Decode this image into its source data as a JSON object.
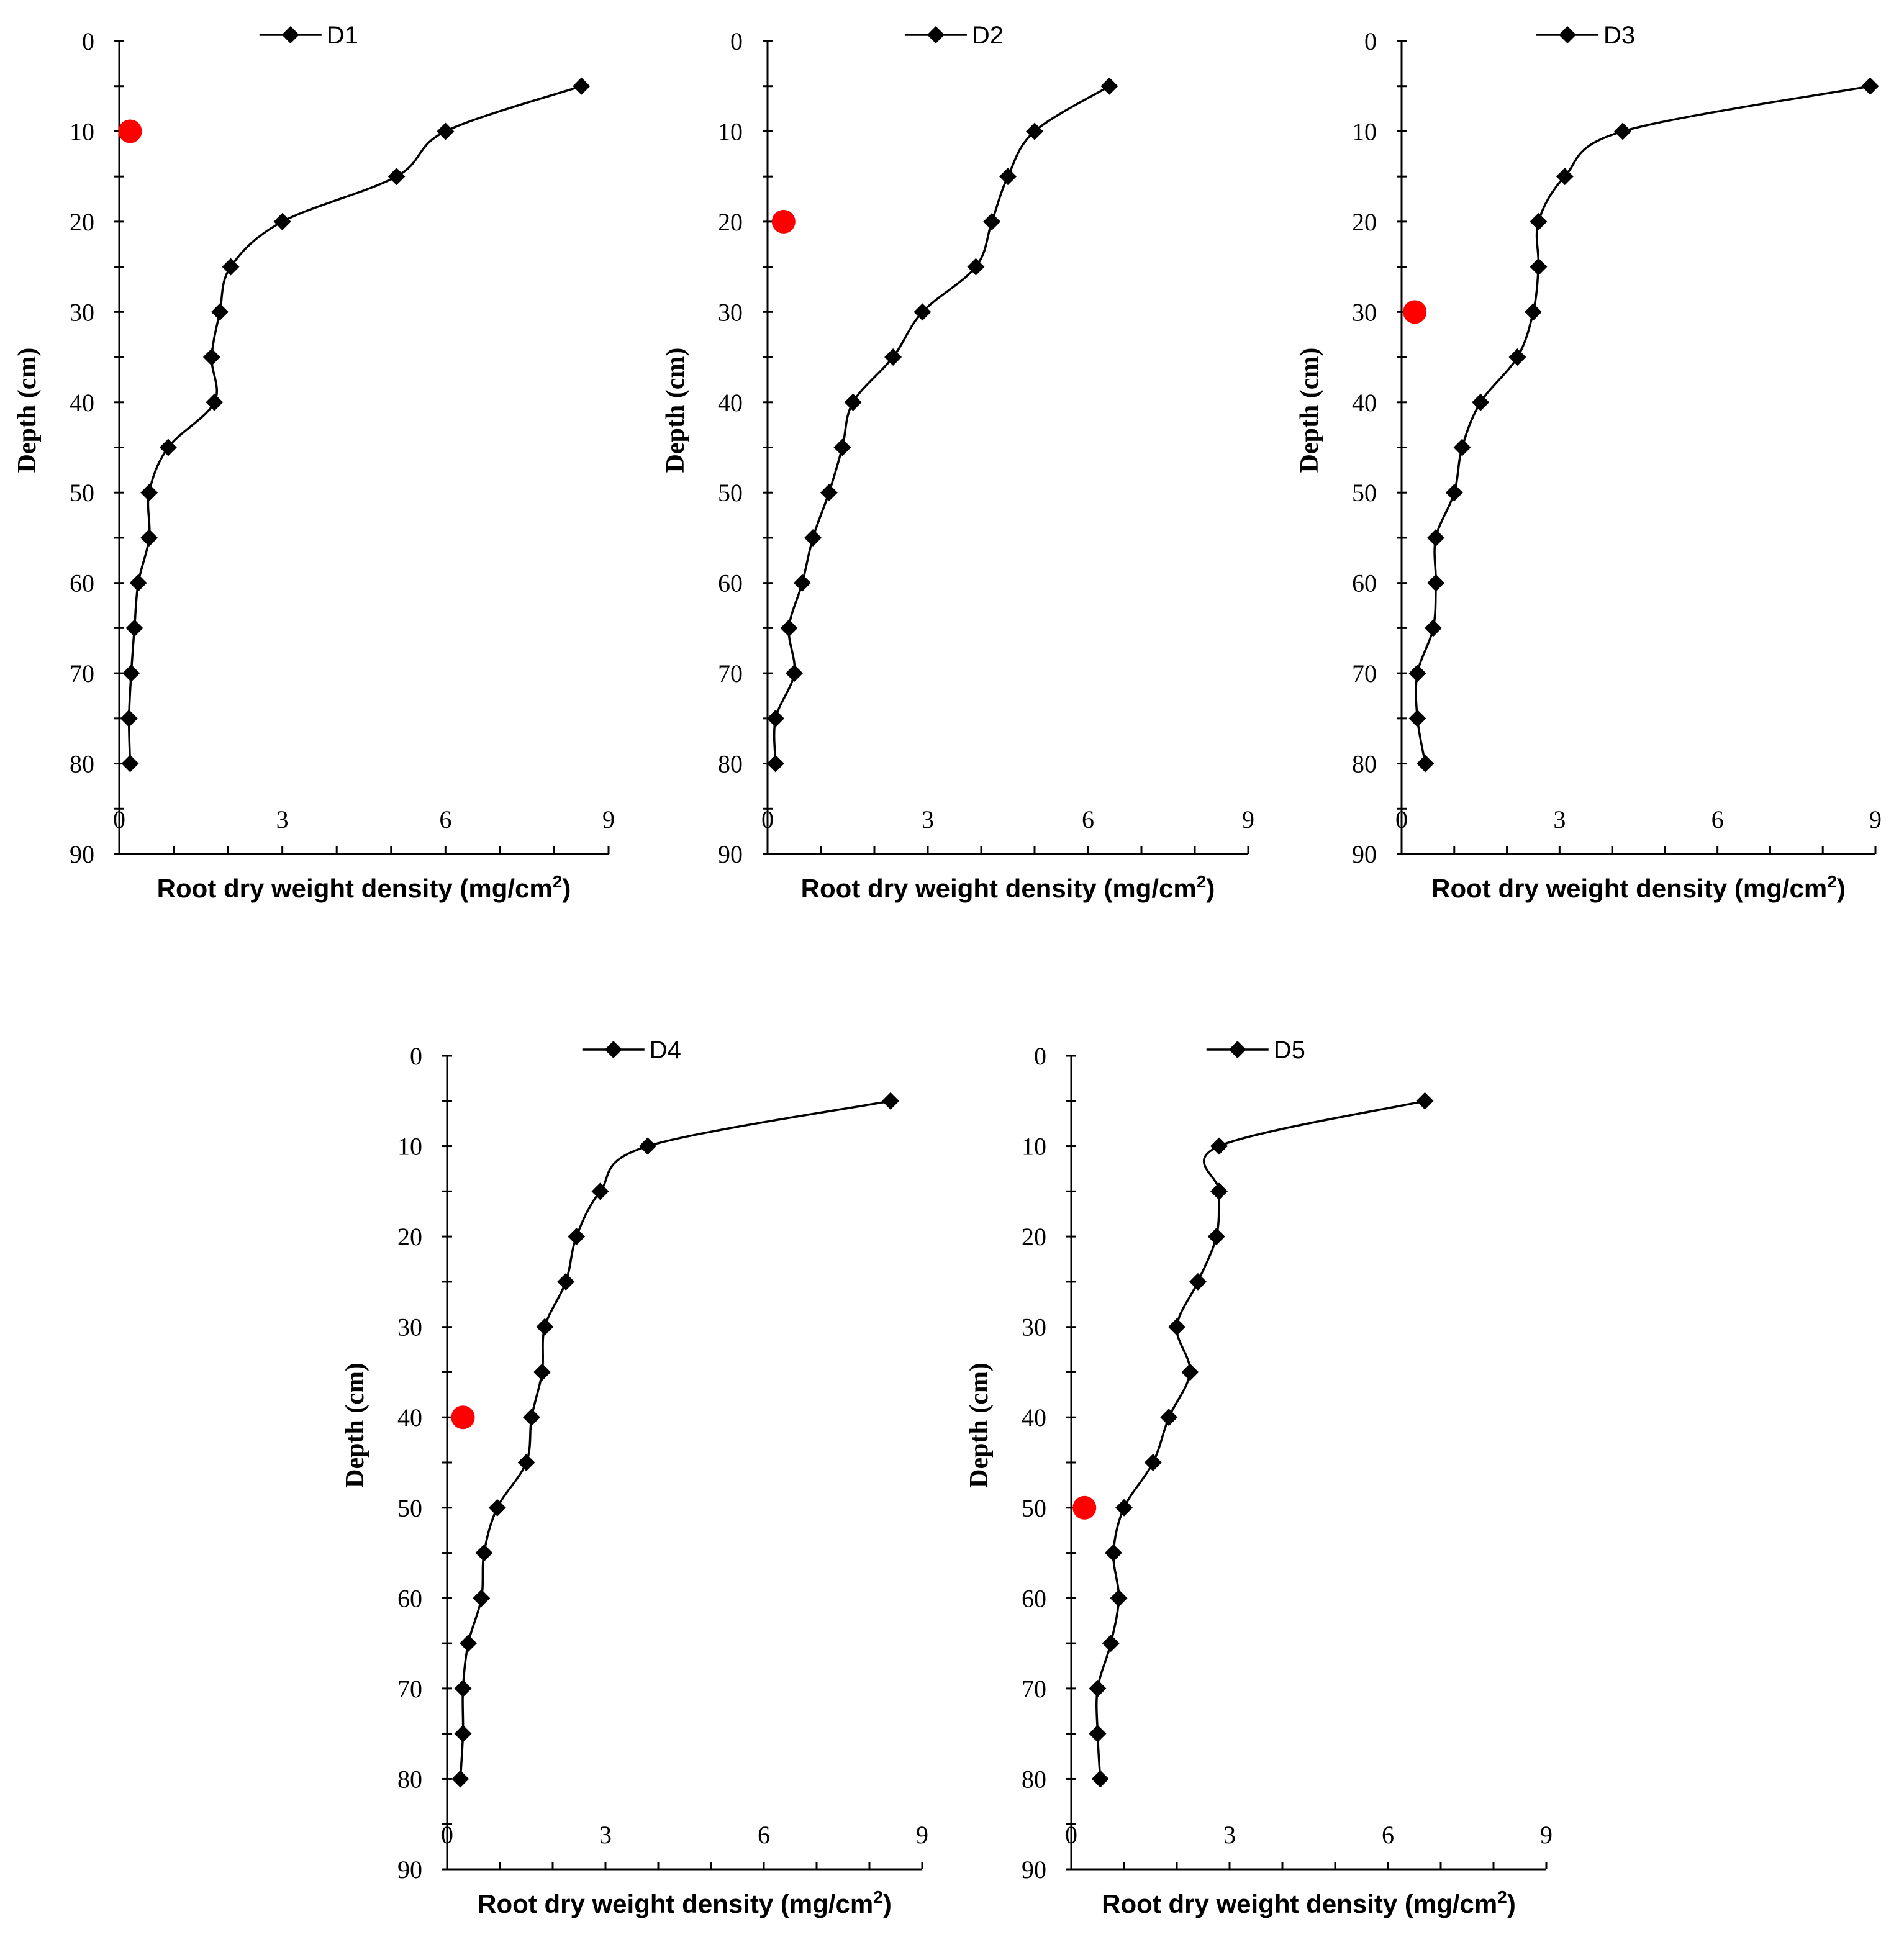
{
  "chart_data": [
    {
      "type": "line",
      "series_name": "D1",
      "xlabel": "Root dry weight density (mg/cm",
      "xlabel_sup": "2",
      "xlabel_close": ")",
      "ylabel": "Depth (cm)",
      "xlim": [
        0,
        9
      ],
      "ylim": [
        0,
        90
      ],
      "x_ticks": [
        "0",
        "3",
        "6",
        "9"
      ],
      "y_ticks": [
        "0",
        "10",
        "20",
        "30",
        "40",
        "50",
        "60",
        "70",
        "80",
        "90"
      ],
      "depth": [
        5,
        10,
        15,
        20,
        25,
        30,
        35,
        40,
        45,
        50,
        55,
        60,
        65,
        70,
        75,
        80
      ],
      "values": [
        8.5,
        6.0,
        5.1,
        3.0,
        2.05,
        1.85,
        1.7,
        1.75,
        0.9,
        0.55,
        0.55,
        0.35,
        0.28,
        0.22,
        0.18,
        0.2
      ],
      "highlight": {
        "x": 0.2,
        "depth": 10
      },
      "highlight_color": "#ff0000"
    },
    {
      "type": "line",
      "series_name": "D2",
      "xlabel": "Root dry weight density (mg/cm",
      "xlabel_sup": "2",
      "xlabel_close": ")",
      "ylabel": "Depth (cm)",
      "xlim": [
        0,
        9
      ],
      "ylim": [
        0,
        90
      ],
      "x_ticks": [
        "0",
        "3",
        "6",
        "9"
      ],
      "y_ticks": [
        "0",
        "10",
        "20",
        "30",
        "40",
        "50",
        "60",
        "70",
        "80",
        "90"
      ],
      "depth": [
        5,
        10,
        15,
        20,
        25,
        30,
        35,
        40,
        45,
        50,
        55,
        60,
        65,
        70,
        75,
        80
      ],
      "values": [
        6.4,
        5.0,
        4.5,
        4.2,
        3.9,
        2.9,
        2.35,
        1.6,
        1.4,
        1.15,
        0.85,
        0.65,
        0.4,
        0.5,
        0.15,
        0.15
      ],
      "highlight": {
        "x": 0.3,
        "depth": 20
      },
      "highlight_color": "#ff0000"
    },
    {
      "type": "line",
      "series_name": "D3",
      "xlabel": "Root dry weight density (mg/cm",
      "xlabel_sup": "2",
      "xlabel_close": ")",
      "ylabel": "Depth (cm)",
      "xlim": [
        0,
        9
      ],
      "ylim": [
        0,
        90
      ],
      "x_ticks": [
        "0",
        "3",
        "6",
        "9"
      ],
      "y_ticks": [
        "0",
        "10",
        "20",
        "30",
        "40",
        "50",
        "60",
        "70",
        "80",
        "90"
      ],
      "depth": [
        5,
        10,
        15,
        20,
        25,
        30,
        35,
        40,
        45,
        50,
        55,
        60,
        65,
        70,
        75,
        80
      ],
      "values": [
        8.9,
        4.2,
        3.1,
        2.6,
        2.6,
        2.5,
        2.2,
        1.5,
        1.15,
        1.0,
        0.65,
        0.65,
        0.6,
        0.3,
        0.3,
        0.45
      ],
      "highlight": {
        "x": 0.25,
        "depth": 30
      },
      "highlight_color": "#ff0000"
    },
    {
      "type": "line",
      "series_name": "D4",
      "xlabel": "Root dry weight density (mg/cm",
      "xlabel_sup": "2",
      "xlabel_close": ")",
      "ylabel": "Depth (cm)",
      "xlim": [
        0,
        9
      ],
      "ylim": [
        0,
        90
      ],
      "x_ticks": [
        "0",
        "3",
        "6",
        "9"
      ],
      "y_ticks": [
        "0",
        "10",
        "20",
        "30",
        "40",
        "50",
        "60",
        "70",
        "80",
        "90"
      ],
      "depth": [
        5,
        10,
        15,
        20,
        25,
        30,
        35,
        40,
        45,
        50,
        55,
        60,
        65,
        70,
        75,
        80
      ],
      "values": [
        8.4,
        3.8,
        2.9,
        2.45,
        2.25,
        1.85,
        1.8,
        1.6,
        1.5,
        0.95,
        0.7,
        0.65,
        0.4,
        0.3,
        0.3,
        0.25
      ],
      "highlight": {
        "x": 0.3,
        "depth": 40
      },
      "highlight_color": "#ff0000"
    },
    {
      "type": "line",
      "series_name": "D5",
      "xlabel": "Root dry weight density (mg/cm",
      "xlabel_sup": "2",
      "xlabel_close": ")",
      "ylabel": "Depth (cm)",
      "xlim": [
        0,
        9
      ],
      "ylim": [
        0,
        90
      ],
      "x_ticks": [
        "0",
        "3",
        "6",
        "9"
      ],
      "y_ticks": [
        "0",
        "10",
        "20",
        "30",
        "40",
        "50",
        "60",
        "70",
        "80",
        "90"
      ],
      "depth": [
        5,
        10,
        15,
        20,
        25,
        30,
        35,
        40,
        45,
        50,
        55,
        60,
        65,
        70,
        75,
        80
      ],
      "values": [
        6.7,
        2.8,
        2.8,
        2.75,
        2.4,
        2.0,
        2.25,
        1.85,
        1.55,
        1.0,
        0.8,
        0.9,
        0.75,
        0.5,
        0.5,
        0.55
      ],
      "highlight": {
        "x": 0.25,
        "depth": 50
      },
      "highlight_color": "#ff0000"
    }
  ]
}
